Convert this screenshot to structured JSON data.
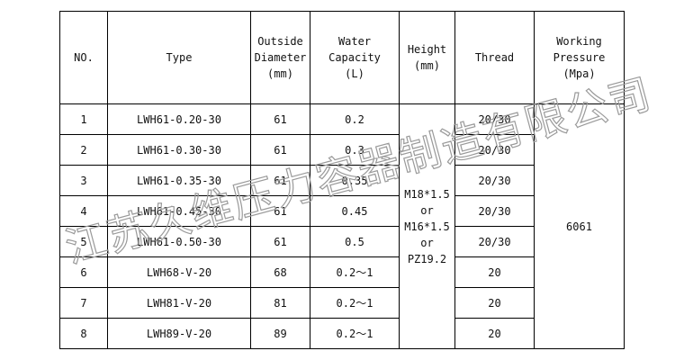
{
  "headers": [
    [
      "NO."
    ],
    [
      "Type"
    ],
    [
      "Outside",
      "Diameter",
      "(mm)"
    ],
    [
      "Water",
      "Capacity",
      "(L)"
    ],
    [
      "Height",
      "(mm)"
    ],
    [
      "Thread"
    ],
    [
      "Working",
      "Pressure",
      "(Mpa)"
    ]
  ],
  "rows": [
    {
      "no": "1",
      "type": "LWH61-0.20-30",
      "diameter": "61",
      "capacity": "0.2",
      "thread": "20/30"
    },
    {
      "no": "2",
      "type": "LWH61-0.30-30",
      "diameter": "61",
      "capacity": "0.3",
      "thread": "20/30"
    },
    {
      "no": "3",
      "type": "LWH61-0.35-30",
      "diameter": "61",
      "capacity": "0.35",
      "thread": "20/30"
    },
    {
      "no": "4",
      "type": "LWH61-0.45-30",
      "diameter": "61",
      "capacity": "0.45",
      "thread": "20/30"
    },
    {
      "no": "5",
      "type": "LWH61-0.50-30",
      "diameter": "61",
      "capacity": "0.5",
      "thread": "20/30"
    },
    {
      "no": "6",
      "type": "LWH68-V-20",
      "diameter": "68",
      "capacity": "0.2～1",
      "thread": "20"
    },
    {
      "no": "7",
      "type": "LWH81-V-20",
      "diameter": "81",
      "capacity": "0.2～1",
      "thread": "20"
    },
    {
      "no": "8",
      "type": "LWH89-V-20",
      "diameter": "89",
      "capacity": "0.2～1",
      "thread": "20"
    }
  ],
  "height_merged": [
    "M18*1.5",
    "or",
    "M16*1.5",
    "or",
    "PZ19.2"
  ],
  "pressure_merged": "6061",
  "watermark": "江苏久维压力容器制造有限公司"
}
